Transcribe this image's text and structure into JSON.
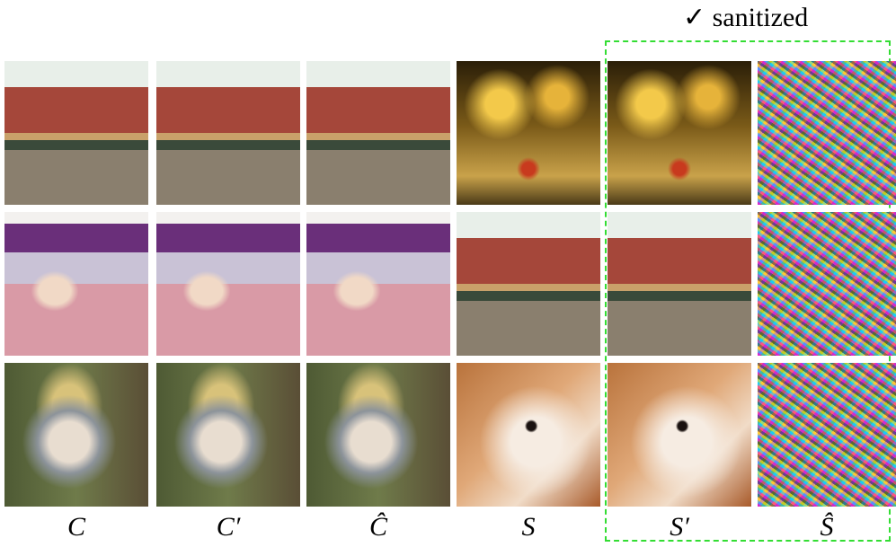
{
  "header": {
    "annotation": "✓ sanitized"
  },
  "columns": [
    "C",
    "C′",
    "Ĉ",
    "S",
    "S′",
    "Ŝ"
  ]
}
